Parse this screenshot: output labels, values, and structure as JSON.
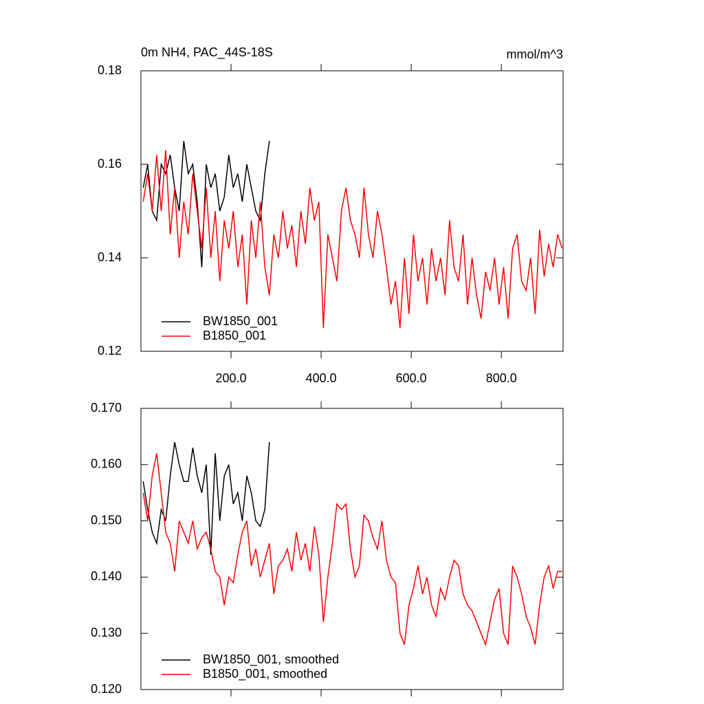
{
  "chart_data": [
    {
      "type": "line",
      "title": "0m NH4, PAC_44S-18S",
      "subtitle": "mmol/m^3",
      "xlim": [
        0,
        937
      ],
      "ylim": [
        0.12,
        0.18
      ],
      "xticks": [
        {
          "value": 200,
          "label": "200.0"
        },
        {
          "value": 400,
          "label": "400.0"
        },
        {
          "value": 600,
          "label": "600.0"
        },
        {
          "value": 800,
          "label": "800.0"
        }
      ],
      "yticks": [
        0.12,
        0.14,
        0.16,
        0.18
      ],
      "legend": "lower left",
      "series": [
        {
          "name": "BW1850_001",
          "color": "#000000",
          "x": [
            5,
            15,
            25,
            35,
            45,
            55,
            65,
            75,
            85,
            95,
            105,
            115,
            125,
            135,
            145,
            155,
            165,
            175,
            185,
            195,
            205,
            215,
            225,
            235,
            245,
            255,
            265,
            275,
            285
          ],
          "values": [
            0.155,
            0.16,
            0.15,
            0.148,
            0.16,
            0.158,
            0.162,
            0.155,
            0.15,
            0.165,
            0.158,
            0.16,
            0.152,
            0.138,
            0.16,
            0.155,
            0.158,
            0.15,
            0.153,
            0.162,
            0.155,
            0.158,
            0.152,
            0.16,
            0.155,
            0.15,
            0.148,
            0.158,
            0.165
          ]
        },
        {
          "name": "B1850_001",
          "color": "#ff0000",
          "x": [
            5,
            15,
            25,
            35,
            45,
            55,
            65,
            75,
            85,
            95,
            105,
            115,
            125,
            135,
            145,
            155,
            165,
            175,
            185,
            195,
            205,
            215,
            225,
            235,
            245,
            255,
            265,
            275,
            285,
            295,
            305,
            315,
            325,
            335,
            345,
            355,
            365,
            375,
            385,
            395,
            405,
            415,
            425,
            435,
            445,
            455,
            465,
            475,
            485,
            495,
            505,
            515,
            525,
            535,
            545,
            555,
            565,
            575,
            585,
            595,
            605,
            615,
            625,
            635,
            645,
            655,
            665,
            675,
            685,
            695,
            705,
            715,
            725,
            735,
            745,
            755,
            765,
            775,
            785,
            795,
            805,
            815,
            825,
            835,
            845,
            855,
            865,
            875,
            885,
            895,
            905,
            915,
            925,
            935
          ],
          "values": [
            0.152,
            0.158,
            0.15,
            0.162,
            0.15,
            0.163,
            0.145,
            0.155,
            0.14,
            0.152,
            0.145,
            0.158,
            0.15,
            0.142,
            0.155,
            0.14,
            0.15,
            0.135,
            0.148,
            0.142,
            0.15,
            0.138,
            0.145,
            0.13,
            0.148,
            0.14,
            0.152,
            0.138,
            0.132,
            0.145,
            0.14,
            0.15,
            0.142,
            0.147,
            0.138,
            0.15,
            0.143,
            0.155,
            0.148,
            0.152,
            0.125,
            0.145,
            0.14,
            0.135,
            0.15,
            0.155,
            0.148,
            0.145,
            0.14,
            0.155,
            0.145,
            0.14,
            0.15,
            0.145,
            0.138,
            0.13,
            0.135,
            0.125,
            0.14,
            0.128,
            0.145,
            0.135,
            0.14,
            0.13,
            0.142,
            0.135,
            0.14,
            0.132,
            0.148,
            0.138,
            0.135,
            0.145,
            0.13,
            0.14,
            0.132,
            0.127,
            0.137,
            0.133,
            0.14,
            0.13,
            0.138,
            0.127,
            0.142,
            0.145,
            0.135,
            0.133,
            0.14,
            0.128,
            0.146,
            0.136,
            0.143,
            0.138,
            0.145,
            0.142
          ]
        }
      ]
    },
    {
      "type": "line",
      "xlim": [
        0,
        937
      ],
      "ylim": [
        0.12,
        0.17
      ],
      "xticks": [
        200,
        400,
        600,
        800
      ],
      "yticks": [
        {
          "value": 0.12,
          "label": "0.120"
        },
        {
          "value": 0.13,
          "label": "0.130"
        },
        {
          "value": 0.14,
          "label": "0.140"
        },
        {
          "value": 0.15,
          "label": "0.150"
        },
        {
          "value": 0.16,
          "label": "0.160"
        },
        {
          "value": 0.17,
          "label": "0.170"
        }
      ],
      "legend": "lower left",
      "series": [
        {
          "name": "BW1850_001, smoothed",
          "color": "#000000",
          "x": [
            5,
            15,
            25,
            35,
            45,
            55,
            65,
            75,
            85,
            95,
            105,
            115,
            125,
            135,
            145,
            155,
            165,
            175,
            185,
            195,
            205,
            215,
            225,
            235,
            245,
            255,
            265,
            275,
            285
          ],
          "values": [
            0.157,
            0.152,
            0.148,
            0.146,
            0.152,
            0.15,
            0.158,
            0.164,
            0.16,
            0.157,
            0.157,
            0.163,
            0.158,
            0.155,
            0.16,
            0.144,
            0.162,
            0.15,
            0.158,
            0.16,
            0.153,
            0.155,
            0.15,
            0.158,
            0.155,
            0.15,
            0.149,
            0.152,
            0.164
          ]
        },
        {
          "name": "B1850_001, smoothed",
          "color": "#ff0000",
          "x": [
            5,
            15,
            25,
            35,
            45,
            55,
            65,
            75,
            85,
            95,
            105,
            115,
            125,
            135,
            145,
            155,
            165,
            175,
            185,
            195,
            205,
            215,
            225,
            235,
            245,
            255,
            265,
            275,
            285,
            295,
            305,
            315,
            325,
            335,
            345,
            355,
            365,
            375,
            385,
            395,
            405,
            415,
            425,
            435,
            445,
            455,
            465,
            475,
            485,
            495,
            505,
            515,
            525,
            535,
            545,
            555,
            565,
            575,
            585,
            595,
            605,
            615,
            625,
            635,
            645,
            655,
            665,
            675,
            685,
            695,
            705,
            715,
            725,
            735,
            745,
            755,
            765,
            775,
            785,
            795,
            805,
            815,
            825,
            835,
            845,
            855,
            865,
            875,
            885,
            895,
            905,
            915,
            925,
            935
          ],
          "values": [
            0.155,
            0.15,
            0.158,
            0.162,
            0.155,
            0.148,
            0.146,
            0.141,
            0.15,
            0.148,
            0.146,
            0.15,
            0.145,
            0.147,
            0.148,
            0.145,
            0.141,
            0.14,
            0.135,
            0.14,
            0.139,
            0.144,
            0.148,
            0.15,
            0.142,
            0.145,
            0.14,
            0.143,
            0.146,
            0.137,
            0.142,
            0.143,
            0.145,
            0.141,
            0.148,
            0.143,
            0.146,
            0.141,
            0.149,
            0.144,
            0.132,
            0.14,
            0.146,
            0.153,
            0.152,
            0.153,
            0.145,
            0.14,
            0.142,
            0.151,
            0.15,
            0.147,
            0.145,
            0.15,
            0.143,
            0.14,
            0.139,
            0.13,
            0.128,
            0.135,
            0.138,
            0.142,
            0.137,
            0.14,
            0.135,
            0.133,
            0.138,
            0.136,
            0.14,
            0.143,
            0.142,
            0.137,
            0.135,
            0.134,
            0.132,
            0.13,
            0.128,
            0.132,
            0.136,
            0.138,
            0.13,
            0.128,
            0.142,
            0.14,
            0.137,
            0.133,
            0.131,
            0.128,
            0.135,
            0.14,
            0.142,
            0.138,
            0.141,
            0.141
          ]
        }
      ]
    }
  ]
}
